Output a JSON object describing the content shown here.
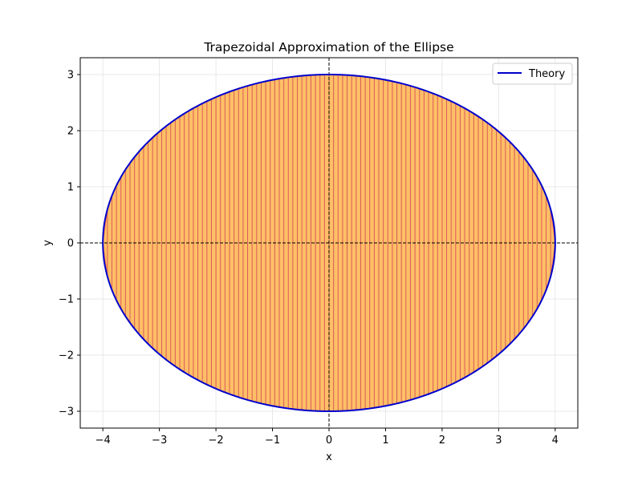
{
  "chart_data": {
    "type": "area",
    "title": "Trapezoidal Approximation of the Ellipse",
    "xlabel": "x",
    "ylabel": "y",
    "xlim": [
      -4.4,
      4.4
    ],
    "ylim": [
      -3.3,
      3.3
    ],
    "xticks": [
      -4,
      -3,
      -2,
      -1,
      0,
      1,
      2,
      3,
      4
    ],
    "yticks": [
      -3,
      -2,
      -1,
      0,
      1,
      2,
      3
    ],
    "grid": true,
    "legend_position": "top-right",
    "ellipse": {
      "a": 4,
      "b": 3
    },
    "trapezoids": {
      "x_start": -4,
      "x_end": 4,
      "count": 100
    },
    "reference_lines": {
      "x": 0,
      "y": 0,
      "style": "dashed"
    },
    "series": [
      {
        "name": "Theory",
        "kind": "line",
        "color": "#0000cc"
      }
    ],
    "fill_color": "#ffbf66",
    "fill_edge_color": "#ff6e4a",
    "strip_line_color": "#d24a5a"
  }
}
